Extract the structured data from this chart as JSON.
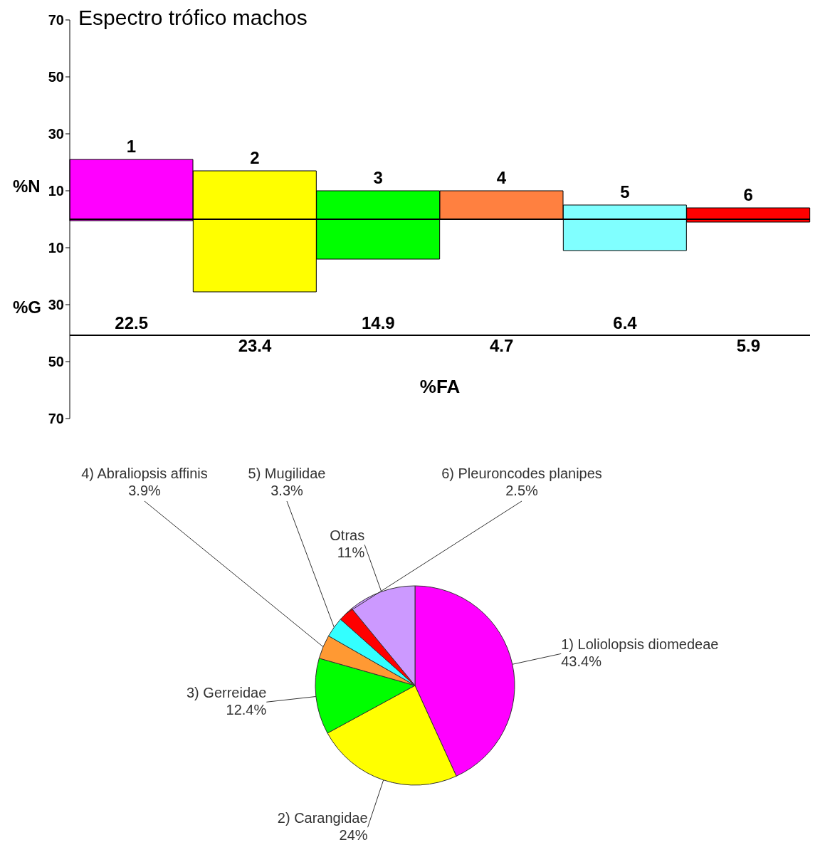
{
  "chart_data": [
    {
      "type": "bar",
      "title": "Espectro trófico machos",
      "xlabel": "%FA",
      "categories": [
        "1",
        "2",
        "3",
        "4",
        "5",
        "6"
      ],
      "series": [
        {
          "colors": [
            "#ff00ff",
            "#ffff00",
            "#00ff00",
            "#ff8040",
            "#80ffff",
            "#ff0000"
          ],
          "values": [
            21,
            17,
            10,
            10,
            5,
            4
          ]
        },
        {
          "colors": [
            "#ff00ff",
            "#ffff00",
            "#00ff00",
            "#ff8040",
            "#80ffff",
            "#ff0000"
          ],
          "values": [
            -0.5,
            -25.5,
            -14,
            0,
            -11,
            -1
          ]
        }
      ],
      "stacked": true,
      "ylim": [
        -70,
        70
      ],
      "yticks": [
        {
          "value": 70,
          "label": "70"
        },
        {
          "value": 50,
          "label": "50"
        },
        {
          "value": 30,
          "label": "30"
        },
        {
          "value": 10,
          "label": "10"
        },
        {
          "value": -10,
          "label": "10"
        },
        {
          "value": -30,
          "label": "30"
        },
        {
          "value": -50,
          "label": "50"
        },
        {
          "value": -70,
          "label": "70"
        }
      ],
      "annotations": [
        "%N",
        "%G",
        "22.5",
        "23.4",
        "14.9",
        "4.7",
        "6.4",
        "5.9"
      ],
      "grid": false,
      "legend": false
    },
    {
      "type": "pie",
      "categories": [
        "1) Loliolopsis diomedeae",
        "2) Carangidae",
        "3) Gerreidae",
        "4) Abraliopsis affinis",
        "5) Mugilidae",
        "6) Pleuroncodes planipes",
        "Otras"
      ],
      "values": [
        43.4,
        24,
        12.4,
        3.9,
        3.3,
        2.5,
        11
      ],
      "value_labels": [
        "43.4%",
        "24%",
        "12.4%",
        "3.9%",
        "3.3%",
        "2.5%",
        "11%"
      ],
      "colors": [
        "#ff00ff",
        "#ffff00",
        "#00ff00",
        "#ff9933",
        "#33ffff",
        "#ff0000",
        "#cc99ff"
      ],
      "legend": false
    }
  ]
}
